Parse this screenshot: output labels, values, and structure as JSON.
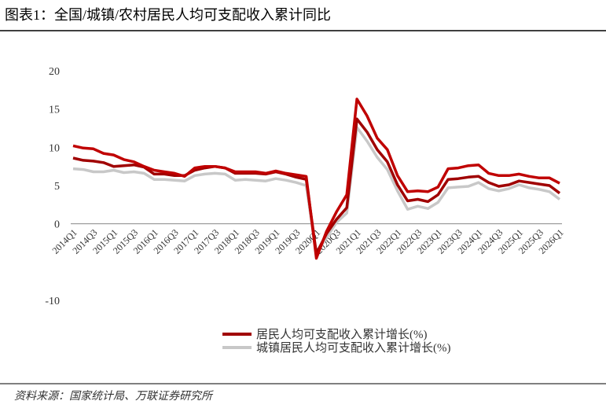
{
  "title": "图表1：全国/城镇/农村居民人均可支配收入累计同比",
  "source": "资料来源：国家统计局、万联证券研究所",
  "chart_data": {
    "type": "line",
    "categories": [
      "2014Q1",
      null,
      "2014Q3",
      null,
      "2015Q1",
      null,
      "2015Q3",
      null,
      "2016Q1",
      null,
      "2016Q3",
      null,
      "2017Q1",
      null,
      "2017Q3",
      null,
      "2018Q1",
      null,
      "2018Q3",
      null,
      "2019Q1",
      null,
      "2019Q3",
      null,
      "2020Q1",
      null,
      "2020Q3",
      null,
      "2021Q1",
      null,
      "2021Q3",
      null,
      "2022Q1",
      null,
      "2022Q3",
      null,
      "2023Q1",
      null,
      "2023Q3",
      null,
      "2024Q1",
      null,
      "2024Q3",
      null,
      "2025Q1",
      null,
      "2025Q3",
      null,
      "2026Q1"
    ],
    "series": [
      {
        "color": "#c00000",
        "values": [
          10.2,
          9.9,
          9.8,
          9.2,
          9.0,
          8.4,
          8.1,
          7.5,
          7.0,
          6.8,
          6.6,
          6.2,
          7.3,
          7.5,
          7.5,
          7.3,
          6.8,
          6.8,
          6.8,
          6.6,
          6.9,
          6.6,
          6.4,
          6.2,
          -4.5,
          -1.0,
          1.6,
          3.8,
          16.3,
          14.1,
          11.2,
          9.7,
          6.3,
          4.2,
          4.3,
          4.2,
          4.8,
          7.2,
          7.3,
          7.6,
          7.7,
          6.6,
          6.3,
          6.3,
          6.5,
          6.2,
          6.0,
          6.0,
          5.3
        ]
      },
      {
        "name": "居民人均可支配收入累计增长(%)",
        "color": "#a00000",
        "values": [
          8.6,
          8.3,
          8.2,
          8.0,
          7.5,
          7.6,
          7.7,
          7.4,
          6.5,
          6.5,
          6.3,
          6.3,
          7.0,
          7.3,
          7.5,
          7.3,
          6.6,
          6.6,
          6.6,
          6.5,
          6.8,
          6.5,
          6.1,
          5.8,
          -3.9,
          -1.3,
          0.6,
          2.1,
          13.7,
          12.0,
          9.7,
          8.1,
          5.1,
          3.0,
          3.2,
          2.9,
          3.8,
          5.8,
          5.9,
          6.1,
          6.2,
          5.4,
          4.9,
          5.1,
          5.6,
          5.4,
          5.2,
          5.0,
          4.0
        ]
      },
      {
        "name": "城镇居民人均可支配收入累计增长(%)",
        "color": "#c8c8c8",
        "values": [
          7.2,
          7.1,
          6.8,
          6.8,
          7.0,
          6.7,
          6.8,
          6.6,
          5.8,
          5.8,
          5.7,
          5.6,
          6.3,
          6.5,
          6.6,
          6.5,
          5.7,
          5.8,
          5.7,
          5.6,
          5.9,
          5.7,
          5.4,
          5.0,
          -3.9,
          -1.8,
          0.2,
          1.4,
          12.6,
          10.8,
          8.7,
          7.1,
          4.3,
          1.9,
          2.3,
          2.0,
          2.8,
          4.7,
          4.8,
          4.9,
          5.4,
          4.6,
          4.3,
          4.6,
          5.1,
          4.7,
          4.5,
          4.2,
          3.2
        ]
      }
    ],
    "ylim": [
      -10,
      20
    ],
    "yticks": [
      -10,
      0,
      5,
      10,
      15,
      20
    ]
  }
}
